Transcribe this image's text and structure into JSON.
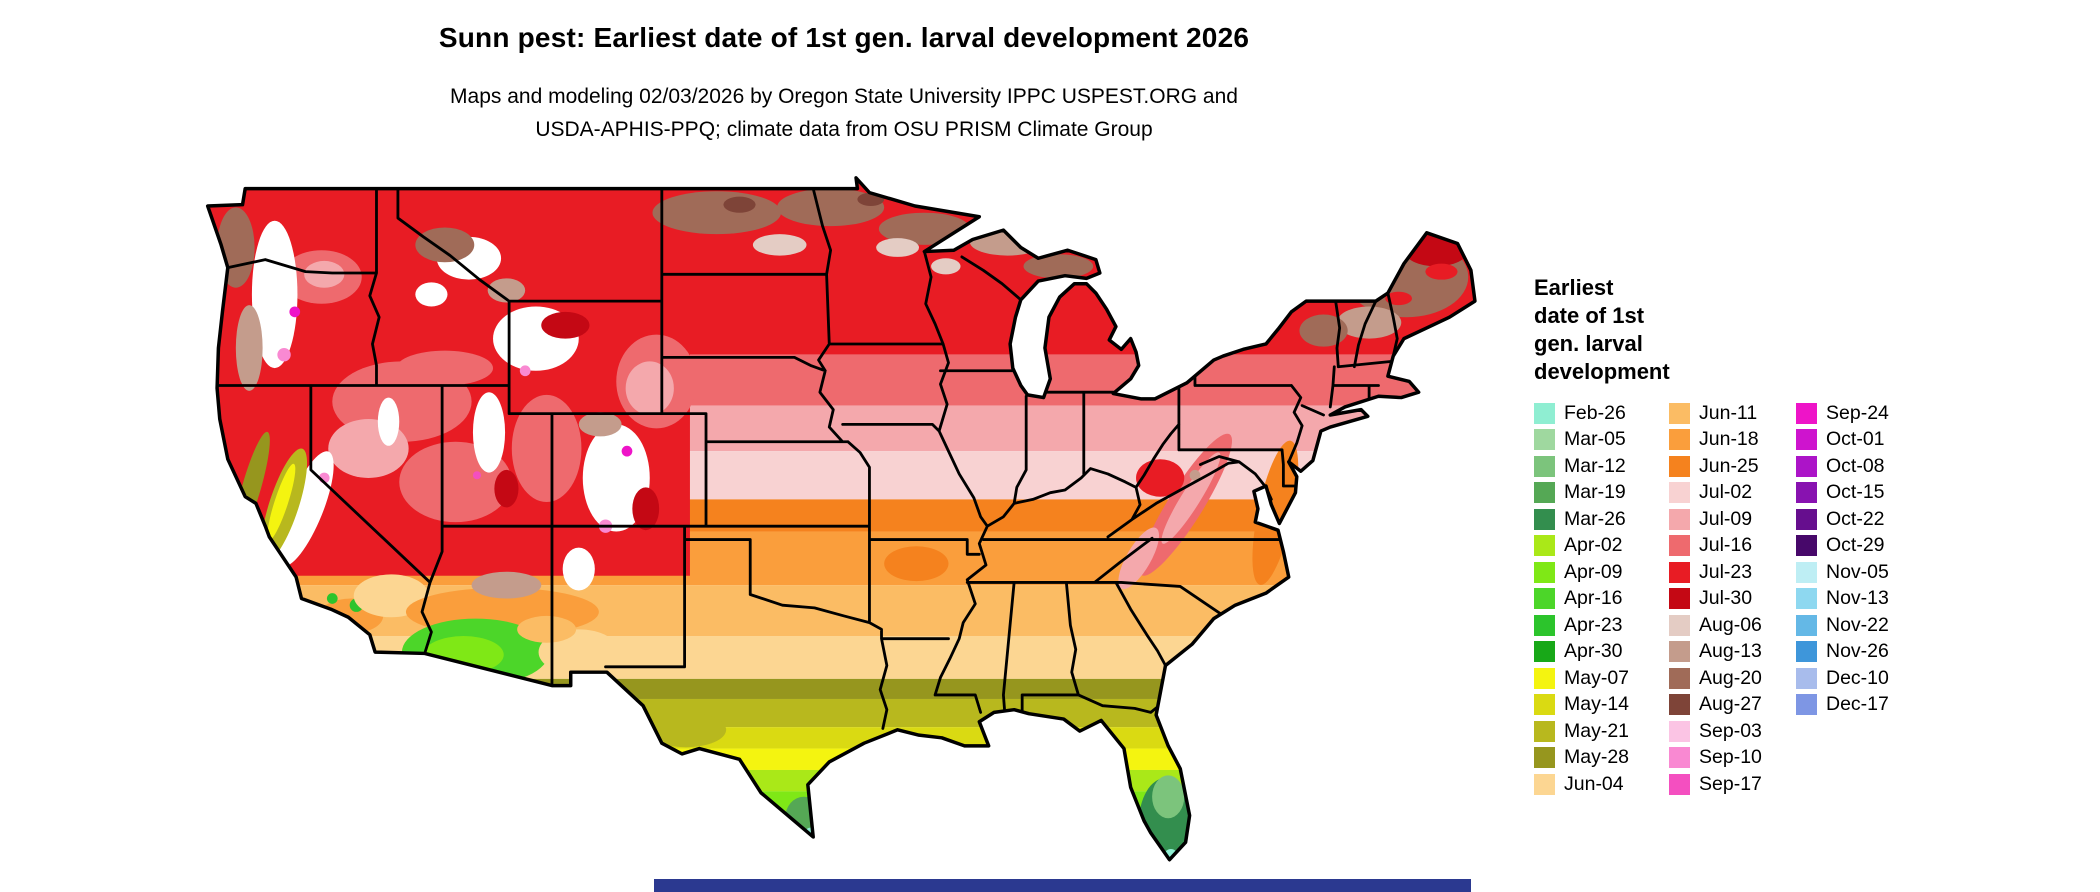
{
  "header": {
    "title": "Sunn pest: Earliest date of 1st gen. larval development 2026",
    "subtitle_line1": "Maps and modeling 02/03/2026 by Oregon State University IPPC USPEST.ORG and",
    "subtitle_line2": "USDA-APHIS-PPQ; climate data from OSU PRISM Climate Group"
  },
  "legend": {
    "title_lines": [
      "Earliest",
      "date of 1st",
      "gen. larval",
      "development"
    ],
    "columns": [
      {
        "entries": [
          {
            "label": "Feb-26",
            "color": "#8FEED2"
          },
          {
            "label": "Mar-05",
            "color": "#9FD89F"
          },
          {
            "label": "Mar-12",
            "color": "#7CC47C"
          },
          {
            "label": "Mar-19",
            "color": "#55A855"
          },
          {
            "label": "Mar-26",
            "color": "#338E4E"
          },
          {
            "label": "Apr-02",
            "color": "#AAE818"
          },
          {
            "label": "Apr-09",
            "color": "#7FE816"
          },
          {
            "label": "Apr-16",
            "color": "#4CD629"
          },
          {
            "label": "Apr-23",
            "color": "#2CC42C"
          },
          {
            "label": "Apr-30",
            "color": "#18A818"
          },
          {
            "label": "May-07",
            "color": "#F4F410"
          },
          {
            "label": "May-14",
            "color": "#DADA12"
          },
          {
            "label": "May-21",
            "color": "#B8B81E"
          },
          {
            "label": "May-28",
            "color": "#96961E"
          },
          {
            "label": "Jun-04",
            "color": "#FCD692"
          }
        ]
      },
      {
        "entries": [
          {
            "label": "Jun-11",
            "color": "#FBBC64"
          },
          {
            "label": "Jun-18",
            "color": "#FA9E3C"
          },
          {
            "label": "Jun-25",
            "color": "#F5821E"
          },
          {
            "label": "Jul-02",
            "color": "#F8D2D2"
          },
          {
            "label": "Jul-09",
            "color": "#F4A8AC"
          },
          {
            "label": "Jul-16",
            "color": "#EE6A6E"
          },
          {
            "label": "Jul-23",
            "color": "#E81C24"
          },
          {
            "label": "Jul-30",
            "color": "#C40814"
          },
          {
            "label": "Aug-06",
            "color": "#E4CCC4"
          },
          {
            "label": "Aug-13",
            "color": "#C49C8C"
          },
          {
            "label": "Aug-20",
            "color": "#A06B58"
          },
          {
            "label": "Aug-27",
            "color": "#7E4438"
          },
          {
            "label": "Sep-03",
            "color": "#FBC4E4"
          },
          {
            "label": "Sep-10",
            "color": "#F989D2"
          },
          {
            "label": "Sep-17",
            "color": "#F44FC0"
          }
        ]
      },
      {
        "entries": [
          {
            "label": "Sep-24",
            "color": "#EE14C8"
          },
          {
            "label": "Oct-01",
            "color": "#CE14CE"
          },
          {
            "label": "Oct-08",
            "color": "#AC14C8"
          },
          {
            "label": "Oct-15",
            "color": "#8812B0"
          },
          {
            "label": "Oct-22",
            "color": "#660E8E"
          },
          {
            "label": "Oct-29",
            "color": "#47086A"
          },
          {
            "label": "Nov-05",
            "color": "#BEEEF4"
          },
          {
            "label": "Nov-13",
            "color": "#8ED8F0"
          },
          {
            "label": "Nov-22",
            "color": "#64B8E6"
          },
          {
            "label": "Nov-26",
            "color": "#3E96DA"
          },
          {
            "label": "Dec-10",
            "color": "#A8BCEC"
          },
          {
            "label": "Dec-17",
            "color": "#7E96E4"
          }
        ]
      }
    ]
  },
  "map": {
    "region_label": "Continental United States choropleth",
    "border_color": "#000000",
    "no_data_color": "#FFFFFF"
  },
  "footer": {
    "bar_color": "#2B3990"
  }
}
